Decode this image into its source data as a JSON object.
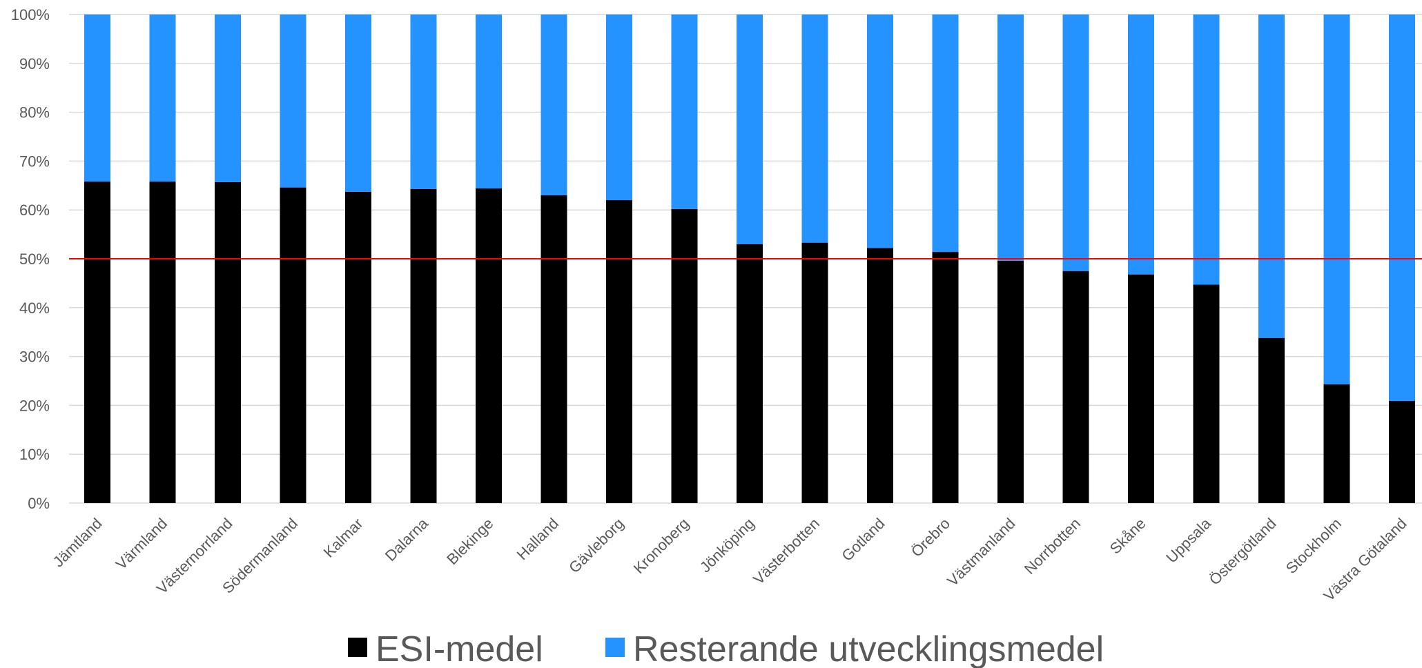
{
  "chart_data": {
    "type": "bar",
    "stacked": true,
    "normalized_percent": true,
    "title": "",
    "xlabel": "",
    "ylabel": "",
    "ylim": [
      0,
      100
    ],
    "yticks": [
      "0%",
      "10%",
      "20%",
      "30%",
      "40%",
      "50%",
      "60%",
      "70%",
      "80%",
      "90%",
      "100%"
    ],
    "grid": true,
    "legend_position": "bottom",
    "categories": [
      "Jämtland",
      "Värmland",
      "Västernorrland",
      "Södermanland",
      "Kalmar",
      "Dalarna",
      "Blekinge",
      "Halland",
      "Gävleborg",
      "Kronoberg",
      "Jönköping",
      "Västerbotten",
      "Gotland",
      "Örebro",
      "Västmanland",
      "Norrbotten",
      "Skåne",
      "Uppsala",
      "Östergötland",
      "Stockholm",
      "Västra Götaland"
    ],
    "series": [
      {
        "name": "ESI-medel",
        "color": "#000000",
        "values": [
          65.8,
          65.8,
          65.7,
          64.6,
          63.7,
          64.3,
          64.4,
          63.0,
          62.0,
          60.2,
          53.0,
          53.3,
          52.2,
          51.4,
          49.6,
          47.5,
          46.8,
          44.7,
          33.8,
          24.3,
          20.9
        ]
      },
      {
        "name": "Resterande utvecklingsmedel",
        "color": "#2492FF",
        "values": [
          34.2,
          34.2,
          34.3,
          35.4,
          36.3,
          35.7,
          35.6,
          37.0,
          38.0,
          39.8,
          47.0,
          46.7,
          47.8,
          48.6,
          50.4,
          52.5,
          53.2,
          55.3,
          66.2,
          75.7,
          79.1
        ]
      }
    ],
    "reference_line": {
      "value": 50,
      "color": "#FF0000"
    }
  }
}
